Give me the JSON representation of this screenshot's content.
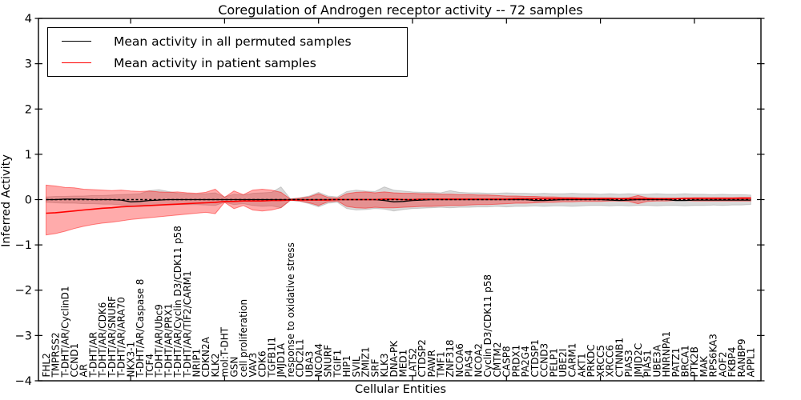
{
  "chart_data": {
    "type": "line",
    "title": "Coregulation of Androgen receptor activity -- 72 samples",
    "xlabel": "Cellular Entities",
    "ylabel": "Inferred Activity",
    "ylim": [
      -4,
      4
    ],
    "yticks": [
      {
        "v": 4,
        "label": "4"
      },
      {
        "v": 3,
        "label": "3"
      },
      {
        "v": 2,
        "label": "2"
      },
      {
        "v": 1,
        "label": "1"
      },
      {
        "v": 0,
        "label": "0"
      },
      {
        "v": -1,
        "label": "−1"
      },
      {
        "v": -2,
        "label": "−2"
      },
      {
        "v": -3,
        "label": "−3"
      },
      {
        "v": -4,
        "label": "−4"
      }
    ],
    "xtick_positions": [
      10,
      20,
      30,
      40,
      50,
      60,
      70
    ],
    "grid": false,
    "legend_position": "upper left",
    "zero_line": {
      "style": "dashed",
      "color": "#000000",
      "y": 0
    },
    "categories": [
      "FHL2",
      "TMPRSS2",
      "T-DHT/AR/CyclinD1",
      "CCND1",
      "AR",
      "T-DHT/AR",
      "T-DHT/AR/CDK6",
      "T-DHT/AR/SNURF",
      "T-DHT/AR/ARA70",
      "NKX3-1",
      "T-DHT/AR/Caspase 8",
      "TCF4",
      "T-DHT/AR/Ubc9",
      "T-DHT/AR/PRX1",
      "T-DHT/AR/Cyclin D3/CDK11 p58",
      "T-DHT/AR/TIF2/CARM1",
      "NRIP1",
      "CDKN2A",
      "KLK2",
      "mol:T-DHT",
      "GSN",
      "cell proliferation",
      "VAV3",
      "CDK6",
      "TGFB1I1",
      "JMJD1A",
      "response to oxidative stress",
      "CDC2L1",
      "UBA3",
      "NCOA4",
      "SNURF",
      "TGIF1",
      "HIP1",
      "SVIL",
      "ZMIZ1",
      "SRF",
      "KLK3",
      "DNA-PK",
      "MED1",
      "LATS2",
      "CTDSP2",
      "PAWR",
      "TMF1",
      "ZNF318",
      "NCOA6",
      "PIAS4",
      "NCOA2",
      "Cyclin D3/CDK11 p58",
      "CMTM2",
      "CASP8",
      "PRDX1",
      "PA2G4",
      "CTDSP1",
      "CCND3",
      "PELP1",
      "UBE2I",
      "CARM1",
      "AKT1",
      "PRKDC",
      "XRCC5",
      "XRCC6",
      "CTNNB1",
      "PIAS3",
      "JMJD2C",
      "PIAS1",
      "UBE3A",
      "HNRNPA1",
      "PATZ1",
      "BRCA1",
      "PTK2B",
      "MAK",
      "RPS6KA3",
      "AOF2",
      "FKBP4",
      "RANBP9",
      "APPL1"
    ],
    "series": [
      {
        "name": "Mean activity in all permuted samples",
        "color": "#000000",
        "values": [
          0,
          0,
          0.01,
          0.01,
          0.01,
          0,
          0,
          0,
          -0.01,
          -0.05,
          -0.04,
          -0.02,
          -0.01,
          0,
          0,
          0,
          0,
          0,
          0,
          0,
          0,
          0,
          0,
          0,
          0,
          0,
          0,
          0,
          0,
          0,
          0,
          0,
          0,
          0,
          0,
          0,
          -0.02,
          -0.05,
          -0.04,
          -0.02,
          -0.01,
          0,
          0,
          0,
          0,
          0,
          0,
          0,
          0,
          0,
          0,
          0,
          -0.02,
          -0.02,
          -0.01,
          0,
          0,
          0,
          0,
          0,
          -0.01,
          -0.02,
          -0.01,
          0,
          0,
          0,
          0,
          -0.02,
          -0.02,
          -0.01,
          -0.01,
          -0.01,
          -0.01,
          -0.01,
          -0.01,
          -0.01
        ]
      },
      {
        "name": "Mean activity in patient samples",
        "color": "#ff0000",
        "values": [
          -0.3,
          -0.29,
          -0.27,
          -0.25,
          -0.23,
          -0.21,
          -0.19,
          -0.18,
          -0.16,
          -0.15,
          -0.14,
          -0.13,
          -0.12,
          -0.11,
          -0.1,
          -0.09,
          -0.08,
          -0.07,
          -0.06,
          -0.04,
          -0.04,
          -0.03,
          -0.03,
          -0.03,
          -0.02,
          -0.02,
          -0.01,
          -0.01,
          -0.01,
          -0.01,
          -0.01,
          0,
          0,
          0,
          0,
          0,
          0.01,
          0.01,
          0,
          0,
          0.01,
          0.01,
          0.01,
          0.01,
          0.01,
          0.01,
          0.01,
          0.01,
          0.01,
          0.01,
          0.02,
          0.02,
          0.02,
          0.02,
          0.02,
          0.02,
          0.02,
          0.02,
          0.02,
          0.02,
          0.02,
          0.02,
          0.02,
          0.02,
          0.02,
          0.02,
          0.02,
          0.02,
          0.03,
          0.03,
          0.03,
          0.03,
          0.03,
          0.03,
          0.03,
          0.03
        ]
      }
    ],
    "bands": [
      {
        "name": "permuted-samples-range",
        "color": "#808080",
        "opacity": 0.3,
        "edge_color": "rgba(0,0,0,0.15)",
        "upper": [
          0.06,
          0.07,
          0.07,
          0.08,
          0.08,
          0.09,
          0.09,
          0.1,
          0.11,
          0.12,
          0.13,
          0.2,
          0.22,
          0.18,
          0.14,
          0.13,
          0.12,
          0.13,
          0.15,
          0.06,
          0.12,
          0.1,
          0.14,
          0.15,
          0.16,
          0.28,
          0.02,
          0.04,
          0.08,
          0.16,
          0.08,
          0.06,
          0.18,
          0.21,
          0.19,
          0.18,
          0.28,
          0.21,
          0.19,
          0.17,
          0.16,
          0.16,
          0.15,
          0.2,
          0.16,
          0.15,
          0.15,
          0.14,
          0.14,
          0.15,
          0.14,
          0.14,
          0.13,
          0.14,
          0.13,
          0.13,
          0.14,
          0.13,
          0.13,
          0.12,
          0.13,
          0.12,
          0.13,
          0.12,
          0.12,
          0.13,
          0.12,
          0.12,
          0.13,
          0.12,
          0.12,
          0.11,
          0.12,
          0.11,
          0.11,
          0.1
        ],
        "lower": [
          -0.06,
          -0.07,
          -0.08,
          -0.08,
          -0.09,
          -0.09,
          -0.1,
          -0.1,
          -0.12,
          -0.14,
          -0.15,
          -0.13,
          -0.12,
          -0.12,
          -0.11,
          -0.11,
          -0.11,
          -0.12,
          -0.13,
          -0.06,
          -0.11,
          -0.09,
          -0.13,
          -0.15,
          -0.14,
          -0.18,
          -0.02,
          -0.04,
          -0.09,
          -0.16,
          -0.08,
          -0.06,
          -0.2,
          -0.23,
          -0.22,
          -0.2,
          -0.21,
          -0.25,
          -0.22,
          -0.2,
          -0.19,
          -0.18,
          -0.17,
          -0.18,
          -0.17,
          -0.17,
          -0.16,
          -0.16,
          -0.15,
          -0.16,
          -0.15,
          -0.15,
          -0.14,
          -0.15,
          -0.14,
          -0.14,
          -0.15,
          -0.14,
          -0.13,
          -0.13,
          -0.14,
          -0.13,
          -0.14,
          -0.13,
          -0.13,
          -0.14,
          -0.13,
          -0.13,
          -0.14,
          -0.13,
          -0.13,
          -0.12,
          -0.13,
          -0.12,
          -0.12,
          -0.11
        ]
      },
      {
        "name": "patient-samples-range",
        "color": "#ff0000",
        "opacity": 0.33,
        "edge_color": "rgba(255,0,0,0.45)",
        "upper": [
          0.32,
          0.3,
          0.27,
          0.26,
          0.23,
          0.22,
          0.21,
          0.2,
          0.21,
          0.19,
          0.18,
          0.19,
          0.17,
          0.16,
          0.17,
          0.15,
          0.14,
          0.16,
          0.23,
          0.05,
          0.19,
          0.11,
          0.21,
          0.23,
          0.21,
          0.16,
          0.01,
          0.03,
          0.06,
          0.13,
          0.05,
          0.03,
          0.13,
          0.16,
          0.17,
          0.15,
          0.17,
          0.15,
          0.14,
          0.14,
          0.13,
          0.13,
          0.12,
          0.12,
          0.11,
          0.11,
          0.1,
          0.1,
          0.09,
          0.08,
          0.08,
          0.07,
          0.07,
          0.06,
          0.06,
          0.05,
          0.05,
          0.04,
          0.04,
          0.04,
          0.04,
          0.03,
          0.04,
          0.09,
          0.04,
          0.03,
          0.03,
          0.03,
          0.03,
          0.04,
          0.04,
          0.04,
          0.04,
          0.04,
          0.05,
          0.05
        ],
        "lower": [
          -0.78,
          -0.75,
          -0.7,
          -0.64,
          -0.59,
          -0.55,
          -0.52,
          -0.5,
          -0.47,
          -0.44,
          -0.42,
          -0.4,
          -0.38,
          -0.36,
          -0.34,
          -0.32,
          -0.3,
          -0.28,
          -0.31,
          -0.06,
          -0.2,
          -0.13,
          -0.23,
          -0.25,
          -0.23,
          -0.18,
          -0.01,
          -0.03,
          -0.07,
          -0.13,
          -0.05,
          -0.03,
          -0.15,
          -0.18,
          -0.19,
          -0.17,
          -0.18,
          -0.18,
          -0.17,
          -0.16,
          -0.15,
          -0.15,
          -0.14,
          -0.13,
          -0.13,
          -0.12,
          -0.11,
          -0.11,
          -0.1,
          -0.09,
          -0.08,
          -0.08,
          -0.07,
          -0.06,
          -0.06,
          -0.05,
          -0.05,
          -0.04,
          -0.04,
          -0.04,
          -0.03,
          -0.03,
          -0.04,
          -0.09,
          -0.04,
          -0.03,
          -0.03,
          -0.02,
          -0.02,
          -0.03,
          -0.03,
          -0.03,
          -0.03,
          -0.03,
          -0.03,
          -0.03
        ]
      }
    ]
  }
}
